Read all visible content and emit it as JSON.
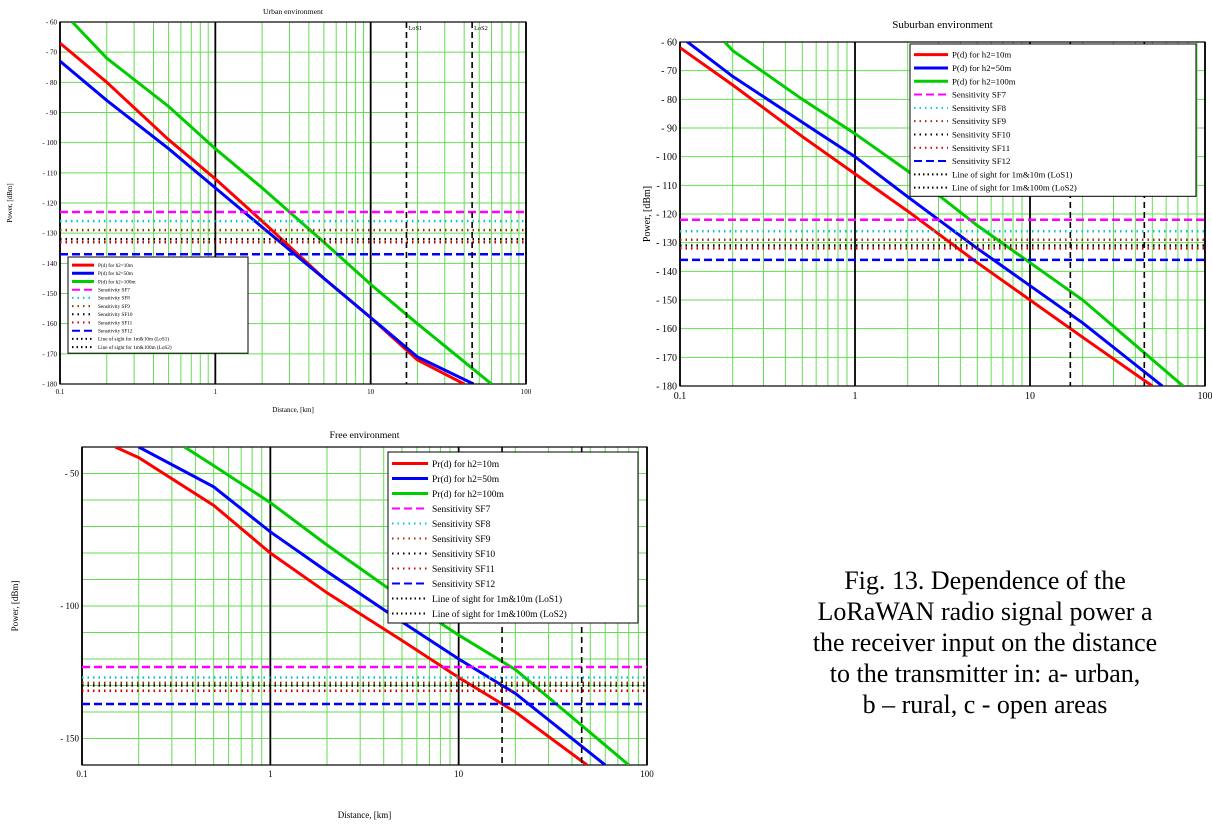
{
  "caption": {
    "lines": [
      "Fig. 13. Dependence of the",
      "LoRaWAN radio signal power a",
      "the receiver input on the distance",
      "to the transmitter in: a- urban,",
      "b – rural, c - open areas"
    ]
  },
  "chart_data": [
    {
      "id": "urban",
      "type": "line",
      "title": "Urban environment",
      "xlabel": "Distance, [km]",
      "ylabel": "Power, [dBm]",
      "xscale": "log",
      "xlim": [
        0.1,
        100
      ],
      "ylim": [
        -180,
        -60
      ],
      "x_ticks": [
        "0.1",
        "1",
        "10",
        "100"
      ],
      "y_ticks": [
        "- 60",
        "- 70",
        "- 80",
        "- 90",
        "- 100",
        "- 110",
        "- 120",
        "- 130",
        "- 140",
        "- 150",
        "- 160",
        "- 170",
        "- 180"
      ],
      "y_tick_values": [
        -60,
        -70,
        -80,
        -90,
        -100,
        -110,
        -120,
        -130,
        -140,
        -150,
        -160,
        -170,
        -180
      ],
      "grid": true,
      "legend_position": "bottom-left",
      "los_labels": [
        "LoS1",
        "LoS2"
      ],
      "series": [
        {
          "name": "P(d)  for h2=10m",
          "kind": "curve",
          "color": "#ff0000",
          "x": [
            0.1,
            0.2,
            0.5,
            1,
            2,
            5,
            10,
            20,
            40
          ],
          "y": [
            -67,
            -80,
            -99,
            -112,
            -126,
            -145,
            -158,
            -172,
            -180
          ]
        },
        {
          "name": "P(d)  for h2=50m",
          "kind": "curve",
          "color": "#0000ff",
          "x": [
            0.1,
            0.2,
            0.5,
            1,
            2,
            5,
            10,
            20,
            46
          ],
          "y": [
            -73,
            -86,
            -102,
            -115,
            -128,
            -145,
            -158,
            -171,
            -180
          ]
        },
        {
          "name": "P(d)  for h2=100m",
          "kind": "curve",
          "color": "#00cc00",
          "x": [
            0.12,
            0.2,
            0.5,
            1,
            2,
            5,
            10,
            20,
            60
          ],
          "y": [
            -60,
            -72,
            -88,
            -102,
            -115,
            -133,
            -147,
            -160,
            -180
          ]
        },
        {
          "name": "Sensitivity  SF7",
          "kind": "hline",
          "color": "#ff00ff",
          "y": -123
        },
        {
          "name": "Sensitivity  SF8",
          "kind": "hline",
          "color": "#00cccc",
          "y": -126
        },
        {
          "name": "Sensitivity  SF9",
          "kind": "hline",
          "color": "#993300",
          "y": -129
        },
        {
          "name": "Sensitivity  SF10",
          "kind": "hline",
          "color": "#000000",
          "y": -132
        },
        {
          "name": "Sensitivity  SF11",
          "kind": "hline",
          "color": "#cc0000",
          "y": -133
        },
        {
          "name": "Sensitivity  SF12",
          "kind": "hline",
          "color": "#0000ff",
          "y": -137
        },
        {
          "name": "Line  of sight for 1m&10m  (LoS1)",
          "kind": "vline",
          "color": "#000000",
          "x": 17
        },
        {
          "name": "Line  of sight for 1m&100m  (LoS2)",
          "kind": "vline",
          "color": "#000000",
          "x": 45
        }
      ]
    },
    {
      "id": "suburban",
      "type": "line",
      "title": "Suburban environment",
      "xlabel": "",
      "ylabel": "Power, [dBm]",
      "xscale": "log",
      "xlim": [
        0.1,
        100
      ],
      "ylim": [
        -180,
        -60
      ],
      "x_ticks": [
        "0.1",
        "1",
        "10",
        "100"
      ],
      "y_ticks": [
        "- 60",
        "- 70",
        "- 80",
        "- 90",
        "- 100",
        "- 110",
        "- 120",
        "- 130",
        "- 140",
        "- 150",
        "- 160",
        "- 170",
        "- 180"
      ],
      "y_tick_values": [
        -60,
        -70,
        -80,
        -90,
        -100,
        -110,
        -120,
        -130,
        -140,
        -150,
        -160,
        -170,
        -180
      ],
      "grid": true,
      "legend_position": "top-right",
      "los_labels": [
        "LoS1",
        "LoS2"
      ],
      "series": [
        {
          "name": "P(d)  for h2=10m",
          "kind": "curve",
          "color": "#ff0000",
          "x": [
            0.1,
            0.2,
            0.5,
            1,
            2,
            5,
            10,
            20,
            50
          ],
          "y": [
            -62,
            -75,
            -93,
            -106,
            -119,
            -137,
            -150,
            -163,
            -180
          ]
        },
        {
          "name": "P(d)  for h2=50m",
          "kind": "curve",
          "color": "#0000ff",
          "x": [
            0.1,
            0.2,
            0.5,
            1,
            2,
            5,
            10,
            20,
            57
          ],
          "y": [
            -58,
            -72,
            -88,
            -100,
            -114,
            -132,
            -145,
            -158,
            -180
          ]
        },
        {
          "name": "P(d)  for h2=100m",
          "kind": "curve",
          "color": "#00cc00",
          "x": [
            0.18,
            0.2,
            0.5,
            1,
            2,
            5,
            10,
            20,
            75
          ],
          "y": [
            -60,
            -63,
            -80,
            -92,
            -105,
            -124,
            -137,
            -150,
            -180
          ]
        },
        {
          "name": "Sensitivity  SF7",
          "kind": "hline",
          "color": "#ff00ff",
          "y": -122
        },
        {
          "name": "Sensitivity  SF8",
          "kind": "hline",
          "color": "#00cccc",
          "y": -126
        },
        {
          "name": "Sensitivity  SF9",
          "kind": "hline",
          "color": "#993300",
          "y": -129
        },
        {
          "name": "Sensitivity  SF10",
          "kind": "hline",
          "color": "#000000",
          "y": -131
        },
        {
          "name": "Sensitivity  SF11",
          "kind": "hline",
          "color": "#cc0000",
          "y": -132
        },
        {
          "name": "Sensitivity  SF12",
          "kind": "hline",
          "color": "#0000ff",
          "y": -136
        },
        {
          "name": "Line  of sight for 1m&10m  (LoS1)",
          "kind": "vline",
          "color": "#000000",
          "x": 17
        },
        {
          "name": "Line  of sight for 1m&100m  (LoS2)",
          "kind": "vline",
          "color": "#000000",
          "x": 45
        }
      ]
    },
    {
      "id": "free",
      "type": "line",
      "title": "Free environment",
      "xlabel": "Distance, [km]",
      "ylabel": "Power, [dBm]",
      "xscale": "log",
      "xlim": [
        0.1,
        100
      ],
      "ylim": [
        -160,
        -40
      ],
      "x_ticks": [
        "0.1",
        "1",
        "10",
        "100"
      ],
      "y_ticks": [
        "- 50",
        "- 100",
        "- 150"
      ],
      "y_tick_values": [
        -50,
        -100,
        -150
      ],
      "grid": true,
      "legend_position": "top-right",
      "los_labels": [
        "LoS1",
        "LoS2"
      ],
      "series": [
        {
          "name": "Pr(d)  for h2=10m",
          "kind": "curve",
          "color": "#ff0000",
          "x": [
            0.15,
            0.2,
            0.5,
            1,
            2,
            5,
            10,
            20,
            48
          ],
          "y": [
            -40,
            -44,
            -62,
            -80,
            -95,
            -113,
            -127,
            -140,
            -160
          ]
        },
        {
          "name": "Pr(d)  for h2=50m",
          "kind": "curve",
          "color": "#0000ff",
          "x": [
            0.2,
            0.5,
            1,
            2,
            5,
            10,
            20,
            60
          ],
          "y": [
            -40,
            -55,
            -72,
            -87,
            -106,
            -120,
            -133,
            -160
          ]
        },
        {
          "name": "Pr(d)  for h2=100m",
          "kind": "curve",
          "color": "#00cc00",
          "x": [
            0.35,
            0.5,
            1,
            2,
            5,
            10,
            20,
            80
          ],
          "y": [
            -40,
            -47,
            -61,
            -77,
            -97,
            -111,
            -124,
            -160
          ]
        },
        {
          "name": "Sensitivity  SF7",
          "kind": "hline",
          "color": "#ff00ff",
          "y": -123
        },
        {
          "name": "Sensitivity  SF8",
          "kind": "hline",
          "color": "#00cccc",
          "y": -127
        },
        {
          "name": "Sensitivity  SF9",
          "kind": "hline",
          "color": "#993300",
          "y": -129
        },
        {
          "name": "Sensitivity  SF10",
          "kind": "hline",
          "color": "#000000",
          "y": -130
        },
        {
          "name": "Sensitivity  SF11",
          "kind": "hline",
          "color": "#cc0000",
          "y": -132
        },
        {
          "name": "Sensitivity  SF12",
          "kind": "hline",
          "color": "#0000ff",
          "y": -137
        },
        {
          "name": "Line  of sight for 1m&10m  (LoS1)",
          "kind": "vline",
          "color": "#000000",
          "x": 17
        },
        {
          "name": "Line  of sight for 1m&100m  (LoS2)",
          "kind": "vline",
          "color": "#000000",
          "x": 45
        }
      ]
    }
  ]
}
